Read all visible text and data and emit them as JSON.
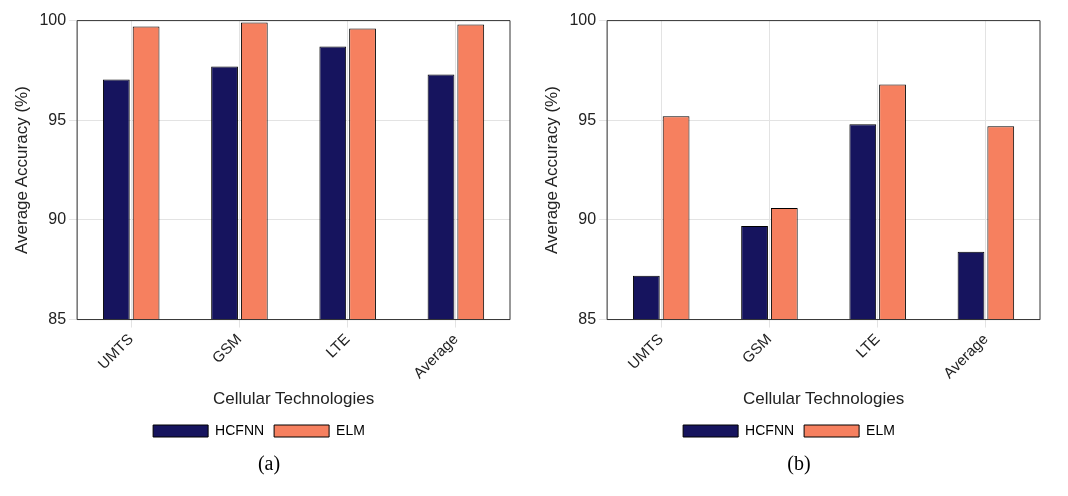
{
  "chart_data": [
    {
      "type": "bar",
      "categories": [
        "UMTS",
        "GSM",
        "LTE",
        "Average"
      ],
      "xlabel": "Cellular Technologies",
      "ylabel": "Average Accuracy (%)",
      "ylim": [
        85,
        100
      ],
      "yticks": [
        85,
        90,
        95,
        100
      ],
      "grid": true,
      "legend": "bottom",
      "annotations": [
        "(a)"
      ],
      "series": [
        {
          "name": "HCFNN",
          "color": "#16145e",
          "values": [
            97.05,
            97.7,
            98.7,
            97.3
          ]
        },
        {
          "name": "ELM",
          "color": "#f6805f",
          "values": [
            99.7,
            99.9,
            99.6,
            99.8
          ]
        }
      ]
    },
    {
      "type": "bar",
      "categories": [
        "UMTS",
        "GSM",
        "LTE",
        "Average"
      ],
      "xlabel": "Cellular Technologies",
      "ylabel": "Average Accuracy (%)",
      "ylim": [
        85,
        100
      ],
      "yticks": [
        85,
        90,
        95,
        100
      ],
      "grid": true,
      "legend": "bottom",
      "annotations": [
        "(b)"
      ],
      "series": [
        {
          "name": "HCFNN",
          "color": "#16145e",
          "values": [
            87.2,
            89.7,
            94.8,
            88.4
          ]
        },
        {
          "name": "ELM",
          "color": "#f6805f",
          "values": [
            95.2,
            90.6,
            96.8,
            94.7
          ]
        }
      ]
    }
  ]
}
